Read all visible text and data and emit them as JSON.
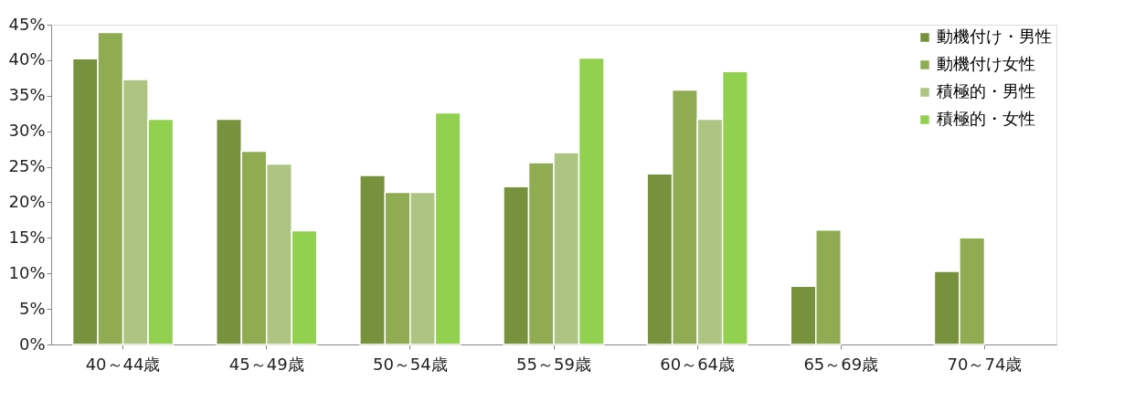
{
  "chart_data": {
    "type": "bar",
    "categories": [
      "40～44歳",
      "45～49歳",
      "50～54歳",
      "55～59歳",
      "60～64歳",
      "65～69歳",
      "70～74歳"
    ],
    "series": [
      {
        "name": "動機付け・男性",
        "color": "#76923c",
        "values": [
          40.2,
          31.7,
          23.8,
          22.2,
          24.0,
          8.2,
          10.3
        ]
      },
      {
        "name": "動機付け女性",
        "color": "#8fac52",
        "values": [
          43.9,
          27.2,
          21.4,
          25.6,
          35.8,
          16.1,
          15.0
        ]
      },
      {
        "name": "積極的・男性",
        "color": "#adc483",
        "values": [
          37.3,
          25.4,
          21.4,
          27.0,
          31.7,
          null,
          null
        ]
      },
      {
        "name": "積極的・女性",
        "color": "#92d050",
        "values": [
          31.7,
          16.0,
          32.6,
          40.3,
          38.4,
          null,
          null
        ]
      }
    ],
    "ylim": [
      0,
      45
    ],
    "yticks": [
      {
        "value": 0,
        "label": "0%"
      },
      {
        "value": 5,
        "label": "5%"
      },
      {
        "value": 10,
        "label": "10%"
      },
      {
        "value": 15,
        "label": "15%"
      },
      {
        "value": 20,
        "label": "20%"
      },
      {
        "value": 25,
        "label": "25%"
      },
      {
        "value": 30,
        "label": "30%"
      },
      {
        "value": 35,
        "label": "35%"
      },
      {
        "value": 40,
        "label": "40%"
      },
      {
        "value": 45,
        "label": "45%"
      }
    ],
    "grid": false,
    "legend": "top right"
  }
}
